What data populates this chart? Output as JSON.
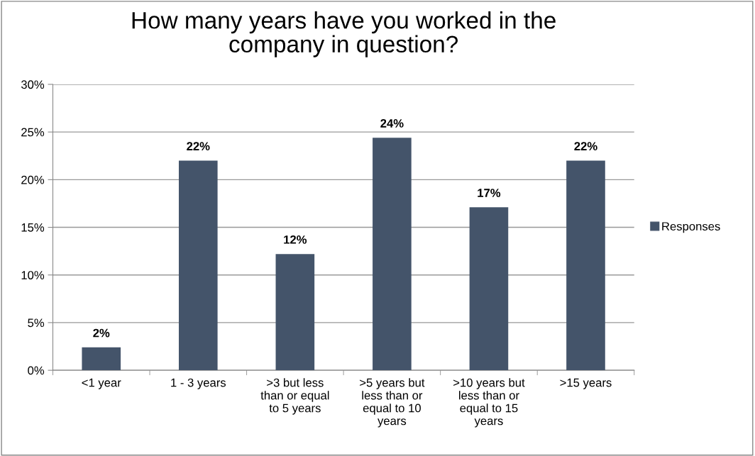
{
  "chart_data": {
    "type": "bar",
    "title": "How many years have you worked in the\ncompany in question?",
    "categories": [
      "<1 year",
      "1 - 3 years",
      ">3 but less\nthan or equal\nto 5 years",
      ">5 years but\nless than or\nequal to 10\nyears",
      ">10 years but\nless than or\nequal to 15\nyears",
      ">15 years"
    ],
    "series": [
      {
        "name": "Responses",
        "color": "#44546a",
        "values": [
          2.4,
          22.0,
          12.2,
          24.4,
          17.1,
          22.0
        ],
        "value_labels": [
          "2%",
          "22%",
          "12%",
          "24%",
          "17%",
          "22%"
        ]
      }
    ],
    "ylim": [
      0,
      30
    ],
    "yticks": [
      {
        "value": 0,
        "label": "0%"
      },
      {
        "value": 5,
        "label": "5%"
      },
      {
        "value": 10,
        "label": "10%"
      },
      {
        "value": 15,
        "label": "15%"
      },
      {
        "value": 20,
        "label": "20%"
      },
      {
        "value": 25,
        "label": "25%"
      },
      {
        "value": 30,
        "label": "30%"
      }
    ],
    "grid": "y",
    "legend": "right"
  }
}
